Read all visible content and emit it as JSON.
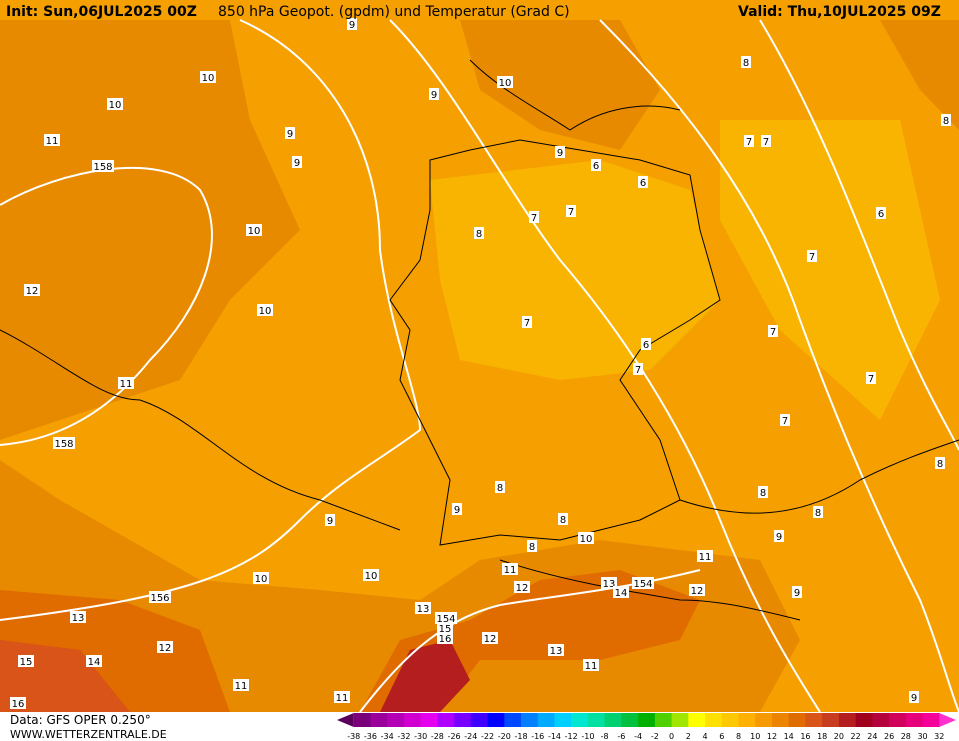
{
  "header": {
    "init": "Init: Sun,06JUL2025 00Z",
    "title": "850 hPa Geopot. (gpdm) und Temperatur (Grad C)",
    "valid": "Valid: Thu,10JUL2025 09Z"
  },
  "footer": {
    "source": "Data: GFS OPER 0.250°",
    "site": "WWW.WETTERZENTRALE.DE"
  },
  "colorbar": {
    "labels": [
      -38,
      -36,
      -34,
      -32,
      -30,
      -28,
      -26,
      -24,
      -22,
      -20,
      -18,
      -16,
      -14,
      -12,
      -10,
      -8,
      -6,
      -4,
      -2,
      0,
      2,
      4,
      6,
      8,
      10,
      12,
      14,
      16,
      18,
      20,
      22,
      24,
      26,
      28,
      30,
      32
    ],
    "colors": [
      "#5a005a",
      "#7a007a",
      "#9a009a",
      "#b400b4",
      "#d000d0",
      "#e600f0",
      "#b000ff",
      "#7800ff",
      "#4000ff",
      "#0000ff",
      "#0048ff",
      "#0080ff",
      "#00aaff",
      "#00d0ff",
      "#00e6d0",
      "#00e0a0",
      "#00d070",
      "#00c040",
      "#00b000",
      "#50d000",
      "#a0e600",
      "#ffff00",
      "#ffe000",
      "#ffc800",
      "#ffb000",
      "#f59a00",
      "#ec8400",
      "#e06c00",
      "#d85418",
      "#c83c20",
      "#b41e1e",
      "#a0001e",
      "#b4003c",
      "#d0005a",
      "#e6007a",
      "#f5009a",
      "#ff30d0"
    ]
  },
  "map": {
    "contour_labels": [
      9,
      10,
      10,
      11,
      158,
      9,
      9,
      10,
      12,
      10,
      11,
      158,
      9,
      10,
      10,
      156,
      13,
      12,
      15,
      14,
      11,
      16,
      11,
      10,
      9,
      9,
      6,
      6,
      7,
      7,
      8,
      7,
      6,
      7,
      8,
      7,
      7,
      8,
      6,
      7,
      7,
      7,
      7,
      8,
      8,
      8,
      8,
      9,
      8,
      10,
      8,
      9,
      11,
      11,
      12,
      13,
      154,
      12,
      14,
      9,
      13,
      154,
      15,
      16,
      12,
      13,
      11,
      9
    ]
  }
}
